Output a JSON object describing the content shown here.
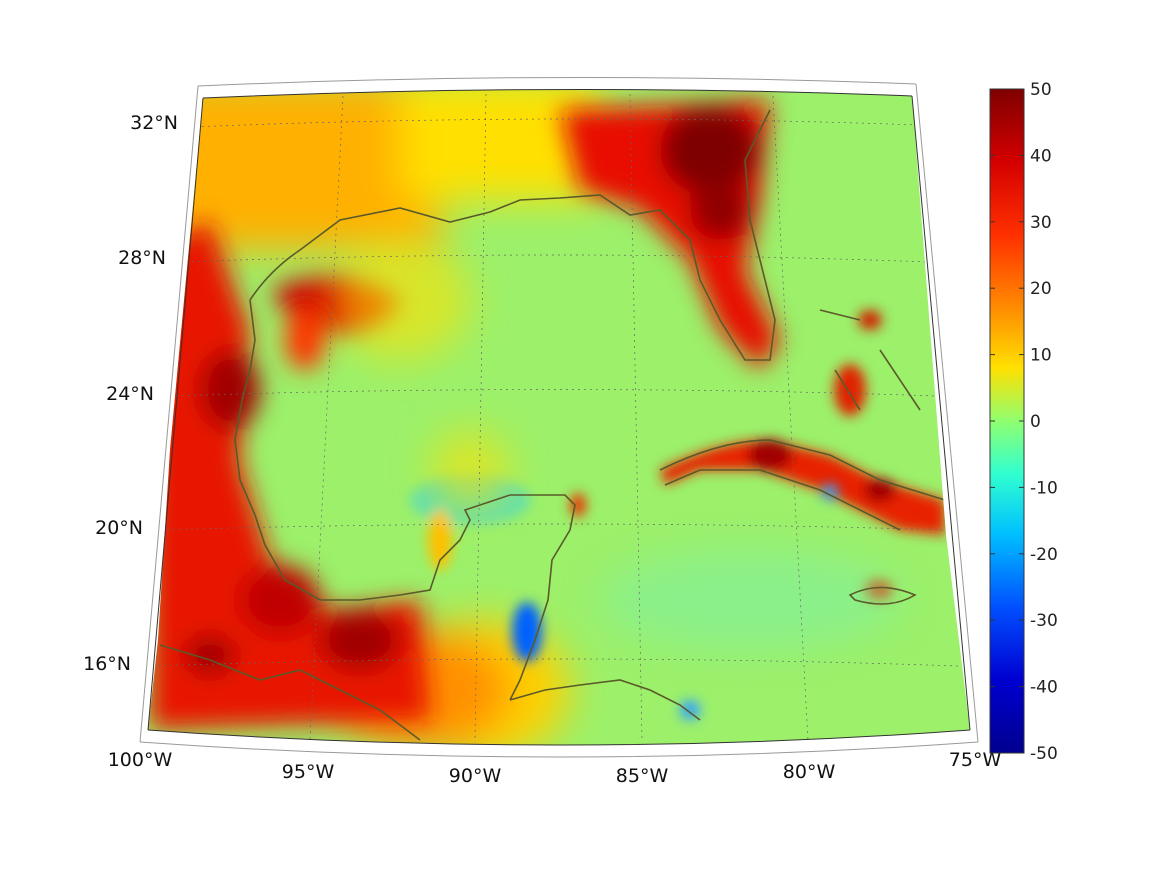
{
  "map": {
    "region": "Gulf of Mexico and Caribbean",
    "lat_labels": [
      "32°N",
      "28°N",
      "24°N",
      "20°N",
      "16°N"
    ],
    "lon_labels": [
      "100°W",
      "95°W",
      "90°W",
      "85°W",
      "80°W",
      "75°W"
    ],
    "colormap": "jet",
    "gridlines": true,
    "coastline_color": "#5a5a2a",
    "land_label_visible": false
  },
  "colorbar": {
    "ticks": [
      "50",
      "40",
      "30",
      "20",
      "10",
      "0",
      "-10",
      "-20",
      "-30",
      "-40",
      "-50"
    ],
    "min": -50,
    "max": 50,
    "placement": "right"
  }
}
